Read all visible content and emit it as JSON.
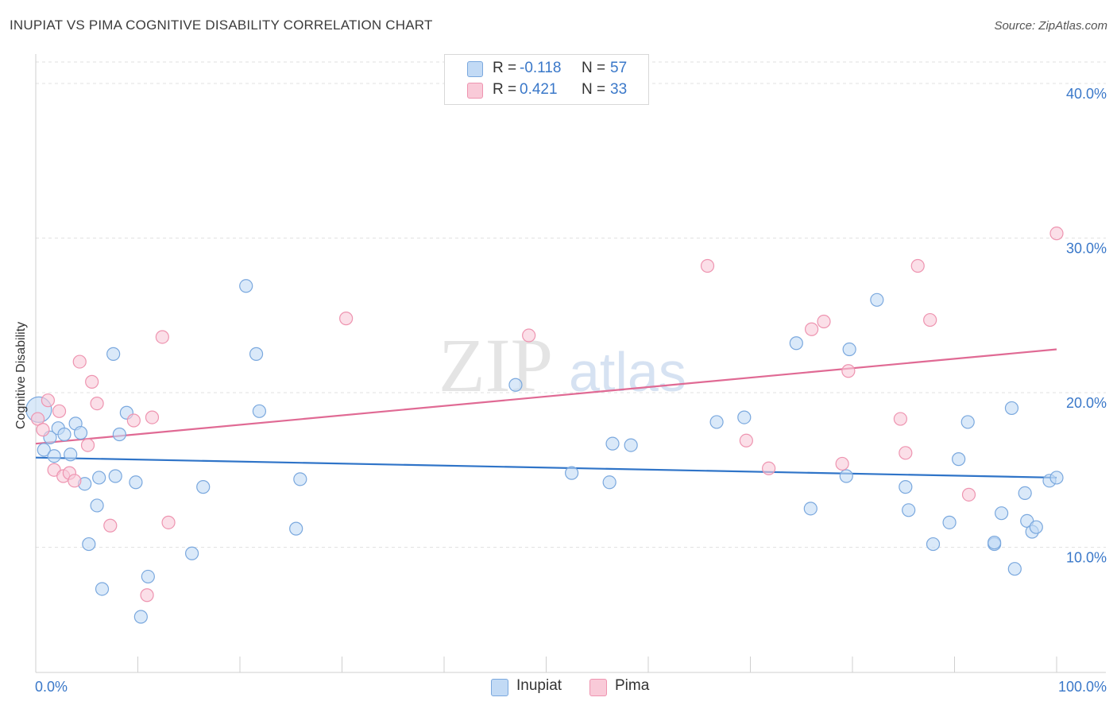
{
  "title": "INUPIAT VS PIMA COGNITIVE DISABILITY CORRELATION CHART",
  "source": "Source: ZipAtlas.com",
  "watermark": {
    "zip": "ZIP",
    "atlas": "atlas"
  },
  "legend_top": [
    {
      "swatch_color": "#aeccf2",
      "r_label": "R =",
      "r_value": "-0.118",
      "n_label": "N =",
      "n_value": "57"
    },
    {
      "swatch_color": "#f7b9cb",
      "r_label": "R =",
      "r_value": "0.421",
      "n_label": "N =",
      "n_value": "33"
    }
  ],
  "legend_bottom": [
    {
      "label": "Inupiat",
      "swatch_color": "#aeccf2"
    },
    {
      "label": "Pima",
      "swatch_color": "#f7b9cb"
    }
  ],
  "colors": {
    "inupiat_fill": "#c2daf5",
    "inupiat_stroke": "#7aa8de",
    "inupiat_line": "#2f74c8",
    "pima_fill": "#f9cad8",
    "pima_stroke": "#ee94b0",
    "pima_line": "#e06a94",
    "tick_label": "#3a78c9",
    "grid": "#e2e2e2"
  },
  "chart_data": {
    "type": "scatter",
    "title": "INUPIAT VS PIMA COGNITIVE DISABILITY CORRELATION CHART",
    "xlabel": "",
    "ylabel": "Cognitive Disability",
    "xlim": [
      0,
      100
    ],
    "ylim": [
      1.9,
      41.8
    ],
    "x_tick_labels": [
      {
        "value": 0,
        "label": "0.0%"
      },
      {
        "value": 100,
        "label": "100.0%"
      }
    ],
    "y_tick_labels": [
      {
        "value": 10,
        "label": "10.0%"
      },
      {
        "value": 20,
        "label": "20.0%"
      },
      {
        "value": 30,
        "label": "30.0%"
      },
      {
        "value": 40,
        "label": "40.0%"
      }
    ],
    "series": [
      {
        "name": "Inupiat",
        "r": -0.118,
        "n": 57,
        "trend": {
          "x": [
            0,
            100
          ],
          "y": [
            15.8,
            14.5
          ]
        },
        "points": [
          {
            "x": 0.3,
            "y": 18.9,
            "big": true
          },
          {
            "x": 0.8,
            "y": 16.3
          },
          {
            "x": 1.4,
            "y": 17.1
          },
          {
            "x": 1.8,
            "y": 15.9
          },
          {
            "x": 2.2,
            "y": 17.7
          },
          {
            "x": 2.8,
            "y": 17.3
          },
          {
            "x": 3.4,
            "y": 16.0
          },
          {
            "x": 3.9,
            "y": 18.0
          },
          {
            "x": 4.4,
            "y": 17.4
          },
          {
            "x": 4.8,
            "y": 14.1
          },
          {
            "x": 5.2,
            "y": 10.2
          },
          {
            "x": 6.0,
            "y": 12.7
          },
          {
            "x": 6.2,
            "y": 14.5
          },
          {
            "x": 6.5,
            "y": 7.3
          },
          {
            "x": 7.6,
            "y": 22.5
          },
          {
            "x": 7.8,
            "y": 14.6
          },
          {
            "x": 8.2,
            "y": 17.3
          },
          {
            "x": 8.9,
            "y": 18.7
          },
          {
            "x": 9.8,
            "y": 14.2
          },
          {
            "x": 10.3,
            "y": 5.5
          },
          {
            "x": 11.0,
            "y": 8.1
          },
          {
            "x": 15.3,
            "y": 9.6
          },
          {
            "x": 16.4,
            "y": 13.9
          },
          {
            "x": 20.6,
            "y": 26.9
          },
          {
            "x": 21.6,
            "y": 22.5
          },
          {
            "x": 21.9,
            "y": 18.8
          },
          {
            "x": 25.5,
            "y": 11.2
          },
          {
            "x": 25.9,
            "y": 14.4
          },
          {
            "x": 47.0,
            "y": 20.5
          },
          {
            "x": 52.5,
            "y": 14.8
          },
          {
            "x": 56.2,
            "y": 14.2
          },
          {
            "x": 56.5,
            "y": 16.7
          },
          {
            "x": 58.3,
            "y": 16.6
          },
          {
            "x": 66.7,
            "y": 18.1
          },
          {
            "x": 69.4,
            "y": 18.4
          },
          {
            "x": 74.5,
            "y": 23.2
          },
          {
            "x": 75.9,
            "y": 12.5
          },
          {
            "x": 79.4,
            "y": 14.6
          },
          {
            "x": 79.7,
            "y": 22.8
          },
          {
            "x": 82.4,
            "y": 26.0
          },
          {
            "x": 85.2,
            "y": 13.9
          },
          {
            "x": 85.5,
            "y": 12.4
          },
          {
            "x": 87.9,
            "y": 10.2
          },
          {
            "x": 89.5,
            "y": 11.6
          },
          {
            "x": 90.4,
            "y": 15.7
          },
          {
            "x": 91.3,
            "y": 18.1
          },
          {
            "x": 93.9,
            "y": 10.2
          },
          {
            "x": 93.9,
            "y": 10.3
          },
          {
            "x": 94.6,
            "y": 12.2
          },
          {
            "x": 95.6,
            "y": 19.0
          },
          {
            "x": 95.9,
            "y": 8.6
          },
          {
            "x": 96.9,
            "y": 13.5
          },
          {
            "x": 97.1,
            "y": 11.7
          },
          {
            "x": 97.6,
            "y": 11.0
          },
          {
            "x": 98.0,
            "y": 11.3
          },
          {
            "x": 99.3,
            "y": 14.3
          },
          {
            "x": 100.0,
            "y": 14.5
          }
        ]
      },
      {
        "name": "Pima",
        "r": 0.421,
        "n": 33,
        "trend": {
          "x": [
            0,
            100
          ],
          "y": [
            16.7,
            22.8
          ]
        },
        "points": [
          {
            "x": 0.2,
            "y": 18.3
          },
          {
            "x": 0.7,
            "y": 17.6
          },
          {
            "x": 1.2,
            "y": 19.5
          },
          {
            "x": 1.8,
            "y": 15.0
          },
          {
            "x": 2.3,
            "y": 18.8
          },
          {
            "x": 2.7,
            "y": 14.6
          },
          {
            "x": 3.3,
            "y": 14.8
          },
          {
            "x": 3.8,
            "y": 14.3
          },
          {
            "x": 4.3,
            "y": 22.0
          },
          {
            "x": 5.1,
            "y": 16.6
          },
          {
            "x": 5.5,
            "y": 20.7
          },
          {
            "x": 6.0,
            "y": 19.3
          },
          {
            "x": 7.3,
            "y": 11.4
          },
          {
            "x": 9.6,
            "y": 18.2
          },
          {
            "x": 10.9,
            "y": 6.9
          },
          {
            "x": 11.4,
            "y": 18.4
          },
          {
            "x": 12.4,
            "y": 23.6
          },
          {
            "x": 13.0,
            "y": 11.6
          },
          {
            "x": 30.4,
            "y": 24.8
          },
          {
            "x": 48.3,
            "y": 23.7
          },
          {
            "x": 65.8,
            "y": 28.2
          },
          {
            "x": 69.6,
            "y": 16.9
          },
          {
            "x": 71.8,
            "y": 15.1
          },
          {
            "x": 76.0,
            "y": 24.1
          },
          {
            "x": 77.2,
            "y": 24.6
          },
          {
            "x": 79.0,
            "y": 15.4
          },
          {
            "x": 79.6,
            "y": 21.4
          },
          {
            "x": 84.7,
            "y": 18.3
          },
          {
            "x": 85.2,
            "y": 16.1
          },
          {
            "x": 86.4,
            "y": 28.2
          },
          {
            "x": 87.6,
            "y": 24.7
          },
          {
            "x": 91.4,
            "y": 13.4
          },
          {
            "x": 100.0,
            "y": 30.3
          }
        ]
      }
    ]
  }
}
